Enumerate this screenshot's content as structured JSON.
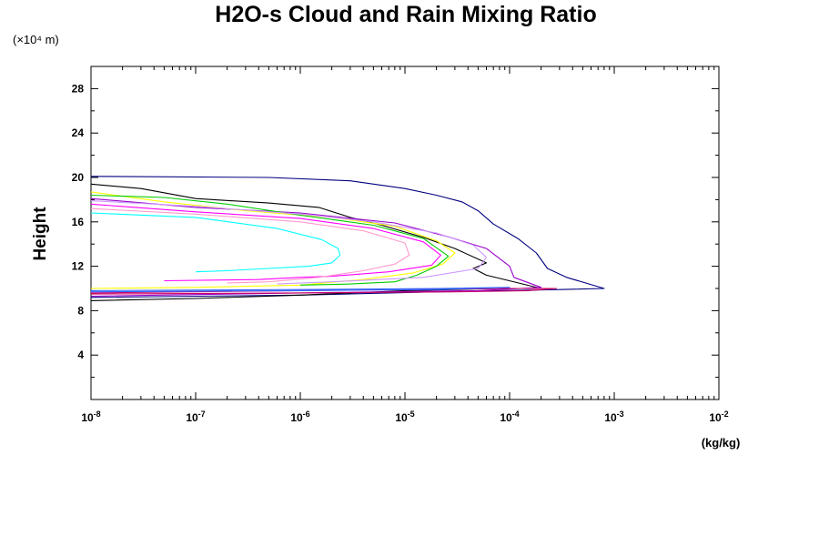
{
  "chart_data": {
    "type": "line",
    "title": "H2O-s Cloud and Rain Mixing Ratio",
    "ylabel": "Height",
    "yunit": "(×10⁴ m)",
    "xunit": "(kg/kg)",
    "xscale": "log",
    "xlim": [
      1e-08,
      0.01
    ],
    "ylim": [
      0,
      30
    ],
    "x_ticks": [
      {
        "base": "10",
        "exp": "-8"
      },
      {
        "base": "10",
        "exp": "-7"
      },
      {
        "base": "10",
        "exp": "-6"
      },
      {
        "base": "10",
        "exp": "-5"
      },
      {
        "base": "10",
        "exp": "-4"
      },
      {
        "base": "10",
        "exp": "-3"
      },
      {
        "base": "10",
        "exp": "-2"
      }
    ],
    "y_ticks": [
      "4",
      "8",
      "12",
      "16",
      "20",
      "24",
      "28"
    ],
    "y_tick_values": [
      4,
      8,
      12,
      16,
      20,
      24,
      28
    ],
    "grid": false,
    "legend": "none",
    "series": [
      {
        "color": "#00007f",
        "points": [
          [
            1e-08,
            20.1
          ],
          [
            5e-07,
            20.0
          ],
          [
            3e-06,
            19.7
          ],
          [
            1e-05,
            19.0
          ],
          [
            2e-05,
            18.4
          ],
          [
            3.5e-05,
            17.8
          ],
          [
            5e-05,
            17.0
          ],
          [
            7e-05,
            15.8
          ],
          [
            0.00012,
            14.5
          ],
          [
            0.00018,
            13.2
          ],
          [
            0.00023,
            11.8
          ],
          [
            0.00035,
            11.0
          ],
          [
            0.0008,
            10.0
          ],
          [
            0.0003,
            9.9
          ],
          [
            2e-05,
            9.7
          ],
          [
            1e-06,
            9.4
          ],
          [
            1e-08,
            9.2
          ]
        ]
      },
      {
        "color": "#000000",
        "points": [
          [
            1e-08,
            19.4
          ],
          [
            3e-08,
            19.0
          ],
          [
            1e-07,
            18.1
          ],
          [
            5e-07,
            17.7
          ],
          [
            1.5e-06,
            17.3
          ],
          [
            3e-06,
            16.4
          ],
          [
            6e-06,
            15.7
          ],
          [
            1.5e-05,
            14.6
          ],
          [
            3e-05,
            13.6
          ],
          [
            6e-05,
            12.3
          ],
          [
            4.5e-05,
            11.8
          ],
          [
            6e-05,
            11.2
          ],
          [
            0.0002,
            10.0
          ],
          [
            8e-05,
            10.0
          ],
          [
            1e-05,
            9.8
          ],
          [
            1e-06,
            9.4
          ],
          [
            1e-07,
            9.1
          ],
          [
            1e-08,
            8.9
          ]
        ]
      },
      {
        "color": "#00ffff",
        "points": [
          [
            1e-08,
            16.8
          ],
          [
            1e-07,
            16.4
          ],
          [
            6e-07,
            15.4
          ],
          [
            1.6e-06,
            14.4
          ],
          [
            2.3e-06,
            13.6
          ],
          [
            2.4e-06,
            13.0
          ],
          [
            2e-06,
            12.3
          ],
          [
            1.2e-06,
            12.0
          ],
          [
            5e-07,
            11.8
          ],
          [
            2e-07,
            11.6
          ],
          [
            1e-07,
            11.5
          ]
        ]
      },
      {
        "color": "#ff00ff",
        "points": [
          [
            1e-08,
            17.6
          ],
          [
            1e-07,
            16.9
          ],
          [
            1e-06,
            16.3
          ],
          [
            5e-06,
            15.4
          ],
          [
            1.5e-05,
            14.2
          ],
          [
            2.2e-05,
            13.0
          ],
          [
            1.8e-05,
            12.1
          ],
          [
            7e-06,
            11.5
          ],
          [
            2e-06,
            11.1
          ],
          [
            1e-06,
            11.0
          ],
          [
            4e-07,
            10.8
          ],
          [
            5e-08,
            10.7
          ]
        ]
      },
      {
        "color": "#9900cc",
        "points": [
          [
            1e-08,
            18.1
          ],
          [
            1e-07,
            17.3
          ],
          [
            1e-06,
            16.8
          ],
          [
            8e-06,
            15.9
          ],
          [
            2.5e-05,
            14.7
          ],
          [
            6e-05,
            13.6
          ],
          [
            0.0001,
            12.0
          ],
          [
            0.00011,
            11.0
          ],
          [
            0.0002,
            10.1
          ],
          [
            5e-05,
            9.8
          ],
          [
            1e-06,
            9.6
          ],
          [
            1e-08,
            9.3
          ]
        ]
      },
      {
        "color": "#cc0066",
        "points": [
          [
            1e-08,
            9.5
          ],
          [
            1e-06,
            9.6
          ],
          [
            3e-05,
            9.7
          ],
          [
            0.00015,
            9.8
          ],
          [
            0.00028,
            10.0
          ],
          [
            0.0001,
            10.0
          ],
          [
            1e-06,
            9.8
          ],
          [
            1e-08,
            9.6
          ]
        ]
      },
      {
        "color": "#ffff00",
        "points": [
          [
            1e-08,
            18.7
          ],
          [
            5e-08,
            17.8
          ],
          [
            3e-07,
            17.0
          ],
          [
            2e-06,
            16.4
          ],
          [
            8e-06,
            15.6
          ],
          [
            2e-05,
            14.3
          ],
          [
            3e-05,
            13.2
          ],
          [
            2.3e-05,
            12.2
          ],
          [
            1.2e-05,
            11.4
          ],
          [
            4e-06,
            10.8
          ],
          [
            1e-06,
            10.3
          ],
          [
            1e-07,
            10.1
          ],
          [
            1e-08,
            10.0
          ]
        ]
      },
      {
        "color": "#00cc00",
        "points": [
          [
            1e-08,
            18.4
          ],
          [
            5e-08,
            18.2
          ],
          [
            2e-07,
            17.6
          ],
          [
            1e-06,
            16.6
          ],
          [
            5e-06,
            15.7
          ],
          [
            1.5e-05,
            14.5
          ],
          [
            2.6e-05,
            12.9
          ],
          [
            2e-05,
            12.0
          ],
          [
            1.3e-05,
            11.2
          ],
          [
            8e-06,
            10.6
          ],
          [
            3e-06,
            10.4
          ],
          [
            1e-06,
            10.3
          ]
        ]
      },
      {
        "color": "#ff99cc",
        "points": [
          [
            1e-08,
            17.2
          ],
          [
            1e-07,
            16.7
          ],
          [
            1e-06,
            16.0
          ],
          [
            4e-06,
            15.2
          ],
          [
            1e-05,
            14.1
          ],
          [
            1.1e-05,
            13.0
          ],
          [
            8e-06,
            12.2
          ],
          [
            4e-06,
            11.6
          ],
          [
            1.5e-06,
            11.0
          ],
          [
            5e-07,
            10.6
          ],
          [
            2e-07,
            10.5
          ]
        ]
      },
      {
        "color": "#cc99ff",
        "points": [
          [
            1e-08,
            17.9
          ],
          [
            1e-07,
            17.4
          ],
          [
            1e-06,
            16.7
          ],
          [
            5e-06,
            16.0
          ],
          [
            2e-05,
            15.0
          ],
          [
            4.5e-05,
            13.9
          ],
          [
            6e-05,
            12.8
          ],
          [
            5e-05,
            11.8
          ],
          [
            1.5e-05,
            11.0
          ],
          [
            2e-06,
            10.6
          ],
          [
            6e-07,
            10.4
          ]
        ]
      },
      {
        "color": "#3366ff",
        "points": [
          [
            1e-08,
            9.7
          ],
          [
            1e-06,
            9.8
          ],
          [
            2e-05,
            9.9
          ],
          [
            0.0001,
            10.1
          ],
          [
            2e-05,
            10.0
          ],
          [
            1e-06,
            9.9
          ],
          [
            1e-08,
            9.8
          ]
        ]
      }
    ]
  }
}
